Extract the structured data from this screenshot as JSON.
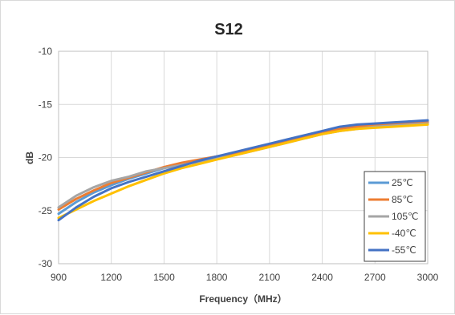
{
  "chart_data": {
    "type": "line",
    "title": "S12",
    "xlabel": "Frequency（MHz）",
    "ylabel": "dB",
    "xlim": [
      900,
      3000
    ],
    "ylim": [
      -30,
      -10
    ],
    "x_ticks": [
      "900",
      "1200",
      "1500",
      "1800",
      "2100",
      "2400",
      "2700",
      "3000"
    ],
    "y_ticks": [
      "-10",
      "-15",
      "-20",
      "-25",
      "-30"
    ],
    "grid": true,
    "legend_position": "bottom-right",
    "x": [
      900,
      1000,
      1100,
      1200,
      1300,
      1400,
      1500,
      1600,
      1700,
      1800,
      1900,
      2000,
      2100,
      2200,
      2300,
      2400,
      2500,
      2600,
      2700,
      2800,
      2900,
      3000
    ],
    "series": [
      {
        "name": "25℃",
        "color": "#5b9bd5",
        "values": [
          -25.3,
          -24.2,
          -23.3,
          -22.6,
          -22.0,
          -21.5,
          -21.0,
          -20.6,
          -20.3,
          -19.9,
          -19.6,
          -19.2,
          -18.8,
          -18.4,
          -18.0,
          -17.6,
          -17.2,
          -17.0,
          -16.9,
          -16.8,
          -16.7,
          -16.6
        ]
      },
      {
        "name": "85℃",
        "color": "#ed7d31",
        "values": [
          -24.9,
          -23.9,
          -23.1,
          -22.4,
          -21.9,
          -21.4,
          -20.9,
          -20.5,
          -20.2,
          -19.9,
          -19.6,
          -19.2,
          -18.8,
          -18.4,
          -18.0,
          -17.6,
          -17.3,
          -17.1,
          -17.0,
          -16.9,
          -16.8,
          -16.7
        ]
      },
      {
        "name": "105℃",
        "color": "#a5a5a5",
        "values": [
          -24.7,
          -23.6,
          -22.8,
          -22.2,
          -21.8,
          -21.3,
          -21.0,
          -20.7,
          -20.4,
          -20.1,
          -19.8,
          -19.4,
          -19.0,
          -18.6,
          -18.2,
          -17.8,
          -17.5,
          -17.3,
          -17.1,
          -17.0,
          -16.9,
          -16.8
        ]
      },
      {
        "name": "-40℃",
        "color": "#ffc000",
        "values": [
          -25.7,
          -24.9,
          -24.1,
          -23.4,
          -22.7,
          -22.1,
          -21.5,
          -21.0,
          -20.6,
          -20.2,
          -19.8,
          -19.4,
          -19.0,
          -18.6,
          -18.2,
          -17.8,
          -17.5,
          -17.3,
          -17.2,
          -17.1,
          -17.0,
          -16.9
        ]
      },
      {
        "name": "-55℃",
        "color": "#4472c4",
        "values": [
          -25.9,
          -24.7,
          -23.7,
          -22.9,
          -22.3,
          -21.8,
          -21.3,
          -20.8,
          -20.3,
          -19.9,
          -19.5,
          -19.1,
          -18.7,
          -18.3,
          -17.9,
          -17.5,
          -17.1,
          -16.9,
          -16.8,
          -16.7,
          -16.6,
          -16.5
        ]
      }
    ]
  }
}
